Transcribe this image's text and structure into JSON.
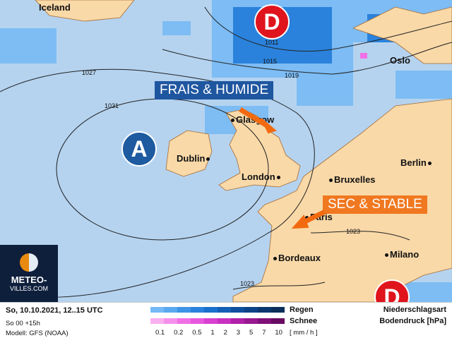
{
  "map": {
    "colors": {
      "sea": "#b5d3ef",
      "land": "#f9d9a8",
      "high": "#1d5aa0",
      "low": "#e0141c",
      "label_blue": "#1f56a0",
      "label_orange": "#f07820"
    },
    "cities": [
      {
        "name": "Iceland"
      },
      {
        "name": "Oslo"
      },
      {
        "name": "Glasgow"
      },
      {
        "name": "Dublin"
      },
      {
        "name": "London"
      },
      {
        "name": "Bruxelles"
      },
      {
        "name": "Berlin"
      },
      {
        "name": "Paris"
      },
      {
        "name": "Bordeaux"
      },
      {
        "name": "Milano"
      }
    ],
    "isobars": [
      "1011",
      "1015",
      "1019",
      "1027",
      "1031",
      "1023",
      "1023"
    ],
    "pressure_centers": [
      {
        "type": "low",
        "letter": "D"
      },
      {
        "type": "high",
        "letter": "A"
      },
      {
        "type": "low",
        "letter": "D"
      }
    ],
    "annotations": [
      "FRAIS & HUMIDE",
      "SEC & STABLE"
    ]
  },
  "logo": {
    "line1": "METEO-",
    "line2": "VILLES.COM"
  },
  "legend": {
    "date": "So, 10.10.2021, 12..15 UTC",
    "run": "So 00 +15h",
    "model": "Modell: GFS (NOAA)",
    "rain_label": "Regen",
    "snow_label": "Schnee",
    "unit": "[ mm / h ]",
    "ticks": [
      "0.1",
      "0.2",
      "0.5",
      "1",
      "2",
      "3",
      "5",
      "7",
      "10"
    ],
    "rain_colors": [
      "#74b9f5",
      "#5aa8f0",
      "#3e94e6",
      "#2a82dc",
      "#1a70cc",
      "#145fb6",
      "#0f4f9e",
      "#0c4286",
      "#0a376e",
      "#0a2e5a"
    ],
    "snow_colors": [
      "#f9b0f0",
      "#f590eb",
      "#f070e6",
      "#e858de",
      "#d840d0",
      "#c830c0",
      "#b020a8",
      "#981890",
      "#801078",
      "#680a62"
    ],
    "right1": "Niederschlagsart",
    "right2": "Bodendruck [hPa]"
  }
}
